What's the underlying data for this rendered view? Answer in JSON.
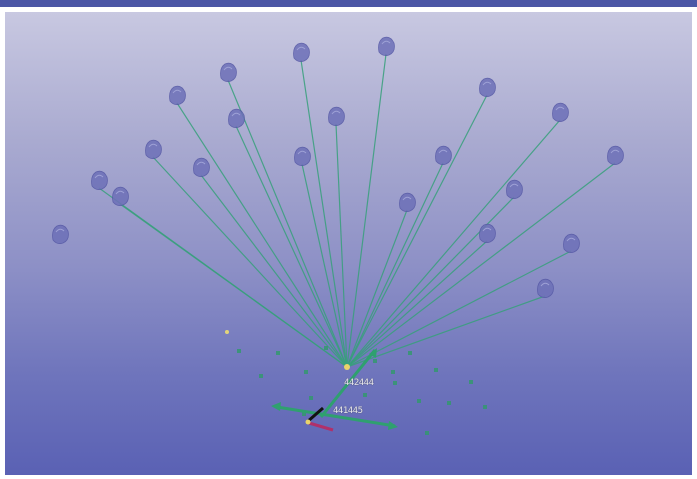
{
  "colors": {
    "top_bar": "#4c57a6",
    "sky_top": "#c8c8e1",
    "sky_bottom": "#5a61b4",
    "ray": "#37a07b",
    "grid_dot": "#2f9a6a",
    "sensor_node": "#6d70b8",
    "axis_red": "#c0392b",
    "axis_dark": "#222222"
  },
  "scene": {
    "origin_label": "442444",
    "gizmo_label": "441445"
  }
}
